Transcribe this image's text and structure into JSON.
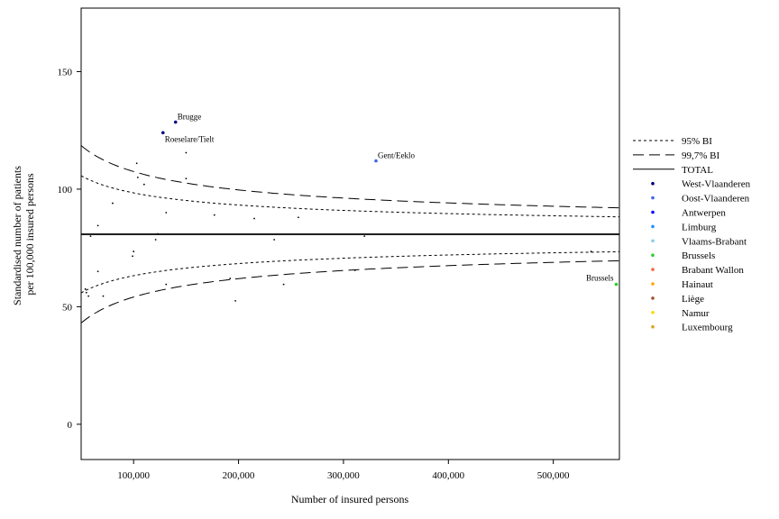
{
  "chart_data": {
    "type": "scatter",
    "title": "",
    "xlabel": "Number of insured persons",
    "ylabel_lines": [
      "Standardised number of patients",
      "per 100,000 insured persons"
    ],
    "xlim": [
      50000,
      563000
    ],
    "ylim": [
      -15,
      177
    ],
    "x_ticks": [
      100000,
      200000,
      300000,
      400000,
      500000
    ],
    "x_tick_labels": [
      "100,000",
      "200,000",
      "300,000",
      "400,000",
      "500,000"
    ],
    "y_ticks": [
      0,
      50,
      100,
      150
    ],
    "y_tick_labels": [
      "0",
      "50",
      "100",
      "150"
    ],
    "grid": false,
    "legend_position": "right",
    "total": 80.8,
    "z95": 1.96,
    "z997": 2.97,
    "legend": [
      {
        "label": "95% BI",
        "kind": "line",
        "dash": "3,3"
      },
      {
        "label": "99,7% BI",
        "kind": "line",
        "dash": "12,6"
      },
      {
        "label": "TOTAL",
        "kind": "line",
        "dash": ""
      },
      {
        "label": "West-Vlaanderen",
        "kind": "point",
        "color": "#000080"
      },
      {
        "label": "Oost-Vlaanderen",
        "kind": "point",
        "color": "#4169e1"
      },
      {
        "label": "Antwerpen",
        "kind": "point",
        "color": "#0000ff"
      },
      {
        "label": "Limburg",
        "kind": "point",
        "color": "#1e90ff"
      },
      {
        "label": "Vlaams-Brabant",
        "kind": "point",
        "color": "#87ceeb"
      },
      {
        "label": "Brussels",
        "kind": "point",
        "color": "#32cd32"
      },
      {
        "label": "Brabant Wallon",
        "kind": "point",
        "color": "#ff6347"
      },
      {
        "label": "Hainaut",
        "kind": "point",
        "color": "#ffa500"
      },
      {
        "label": "Liège",
        "kind": "point",
        "color": "#a0522d"
      },
      {
        "label": "Namur",
        "kind": "point",
        "color": "#ffd700"
      },
      {
        "label": "Luxembourg",
        "kind": "point",
        "color": "#daa520"
      }
    ],
    "points": [
      {
        "x": 140000,
        "y": 128.5,
        "color": "#000080",
        "label": "Brugge"
      },
      {
        "x": 128000,
        "y": 124,
        "color": "#000080",
        "label": "Roeselare/Tielt"
      },
      {
        "x": 331000,
        "y": 112,
        "color": "#4169e1",
        "label": "Gent/Eeklo"
      },
      {
        "x": 560000,
        "y": 59.5,
        "color": "#32cd32",
        "label": "Brussels"
      },
      {
        "x": 103000,
        "y": 111,
        "color": "#000000"
      },
      {
        "x": 104000,
        "y": 105,
        "color": "#000000"
      },
      {
        "x": 110000,
        "y": 102,
        "color": "#000000"
      },
      {
        "x": 150000,
        "y": 115.5,
        "color": "#000000"
      },
      {
        "x": 150000,
        "y": 104.5,
        "color": "#000000"
      },
      {
        "x": 80000,
        "y": 94,
        "color": "#000000"
      },
      {
        "x": 66000,
        "y": 84.5,
        "color": "#000000"
      },
      {
        "x": 131000,
        "y": 90,
        "color": "#000000"
      },
      {
        "x": 177000,
        "y": 89,
        "color": "#000000"
      },
      {
        "x": 215000,
        "y": 87.5,
        "color": "#000000"
      },
      {
        "x": 257000,
        "y": 88,
        "color": "#000000"
      },
      {
        "x": 59000,
        "y": 80,
        "color": "#000000"
      },
      {
        "x": 123000,
        "y": 81,
        "color": "#000000"
      },
      {
        "x": 121000,
        "y": 78.5,
        "color": "#000000"
      },
      {
        "x": 234000,
        "y": 78.5,
        "color": "#000000"
      },
      {
        "x": 320000,
        "y": 80,
        "color": "#000000"
      },
      {
        "x": 100000,
        "y": 73.5,
        "color": "#000000"
      },
      {
        "x": 99000,
        "y": 71.5,
        "color": "#000000"
      },
      {
        "x": 536000,
        "y": 73.5,
        "color": "#000000"
      },
      {
        "x": 66000,
        "y": 65,
        "color": "#000000"
      },
      {
        "x": 311000,
        "y": 65.5,
        "color": "#000000"
      },
      {
        "x": 192000,
        "y": 62,
        "color": "#000000"
      },
      {
        "x": 131000,
        "y": 59.5,
        "color": "#000000"
      },
      {
        "x": 243000,
        "y": 59.5,
        "color": "#000000"
      },
      {
        "x": 54000,
        "y": 57.5,
        "color": "#000000"
      },
      {
        "x": 55000,
        "y": 56,
        "color": "#000000"
      },
      {
        "x": 57000,
        "y": 54.5,
        "color": "#000000"
      },
      {
        "x": 71000,
        "y": 54.5,
        "color": "#000000"
      },
      {
        "x": 197000,
        "y": 52.5,
        "color": "#000000"
      }
    ]
  }
}
